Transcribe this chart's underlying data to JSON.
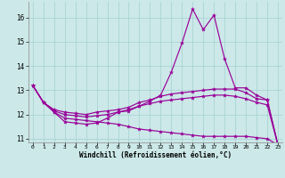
{
  "xlabel": "Windchill (Refroidissement éolien,°C)",
  "background_color": "#cce8e8",
  "grid_color": "#aad4d4",
  "line_color": "#990099",
  "xlim_min": -0.4,
  "xlim_max": 23.4,
  "ylim_min": 10.85,
  "ylim_max": 16.65,
  "xticks": [
    0,
    1,
    2,
    3,
    4,
    5,
    6,
    7,
    8,
    9,
    10,
    11,
    12,
    13,
    14,
    15,
    16,
    17,
    18,
    19,
    20,
    21,
    22,
    23
  ],
  "yticks": [
    11,
    12,
    13,
    14,
    15,
    16
  ],
  "curve1_y": [
    13.2,
    12.5,
    12.1,
    11.7,
    11.65,
    11.6,
    11.65,
    11.85,
    12.1,
    12.15,
    12.35,
    12.55,
    12.8,
    13.75,
    14.95,
    16.35,
    15.5,
    16.1,
    14.3,
    13.1,
    13.1,
    12.8,
    12.6,
    10.75
  ],
  "curve2_y": [
    13.2,
    12.5,
    12.2,
    12.1,
    12.05,
    12.0,
    12.1,
    12.15,
    12.2,
    12.3,
    12.5,
    12.6,
    12.75,
    12.85,
    12.9,
    12.95,
    13.0,
    13.05,
    13.05,
    13.05,
    12.9,
    12.65,
    12.6,
    10.75
  ],
  "curve3_y": [
    13.2,
    12.5,
    12.15,
    12.0,
    11.95,
    11.9,
    11.95,
    12.0,
    12.1,
    12.2,
    12.35,
    12.45,
    12.55,
    12.6,
    12.65,
    12.7,
    12.75,
    12.8,
    12.8,
    12.75,
    12.65,
    12.5,
    12.4,
    10.75
  ],
  "curve4_y": [
    13.2,
    12.5,
    12.1,
    11.85,
    11.8,
    11.75,
    11.7,
    11.65,
    11.6,
    11.5,
    11.4,
    11.35,
    11.3,
    11.25,
    11.2,
    11.15,
    11.1,
    11.1,
    11.1,
    11.1,
    11.1,
    11.05,
    11.0,
    10.75
  ]
}
